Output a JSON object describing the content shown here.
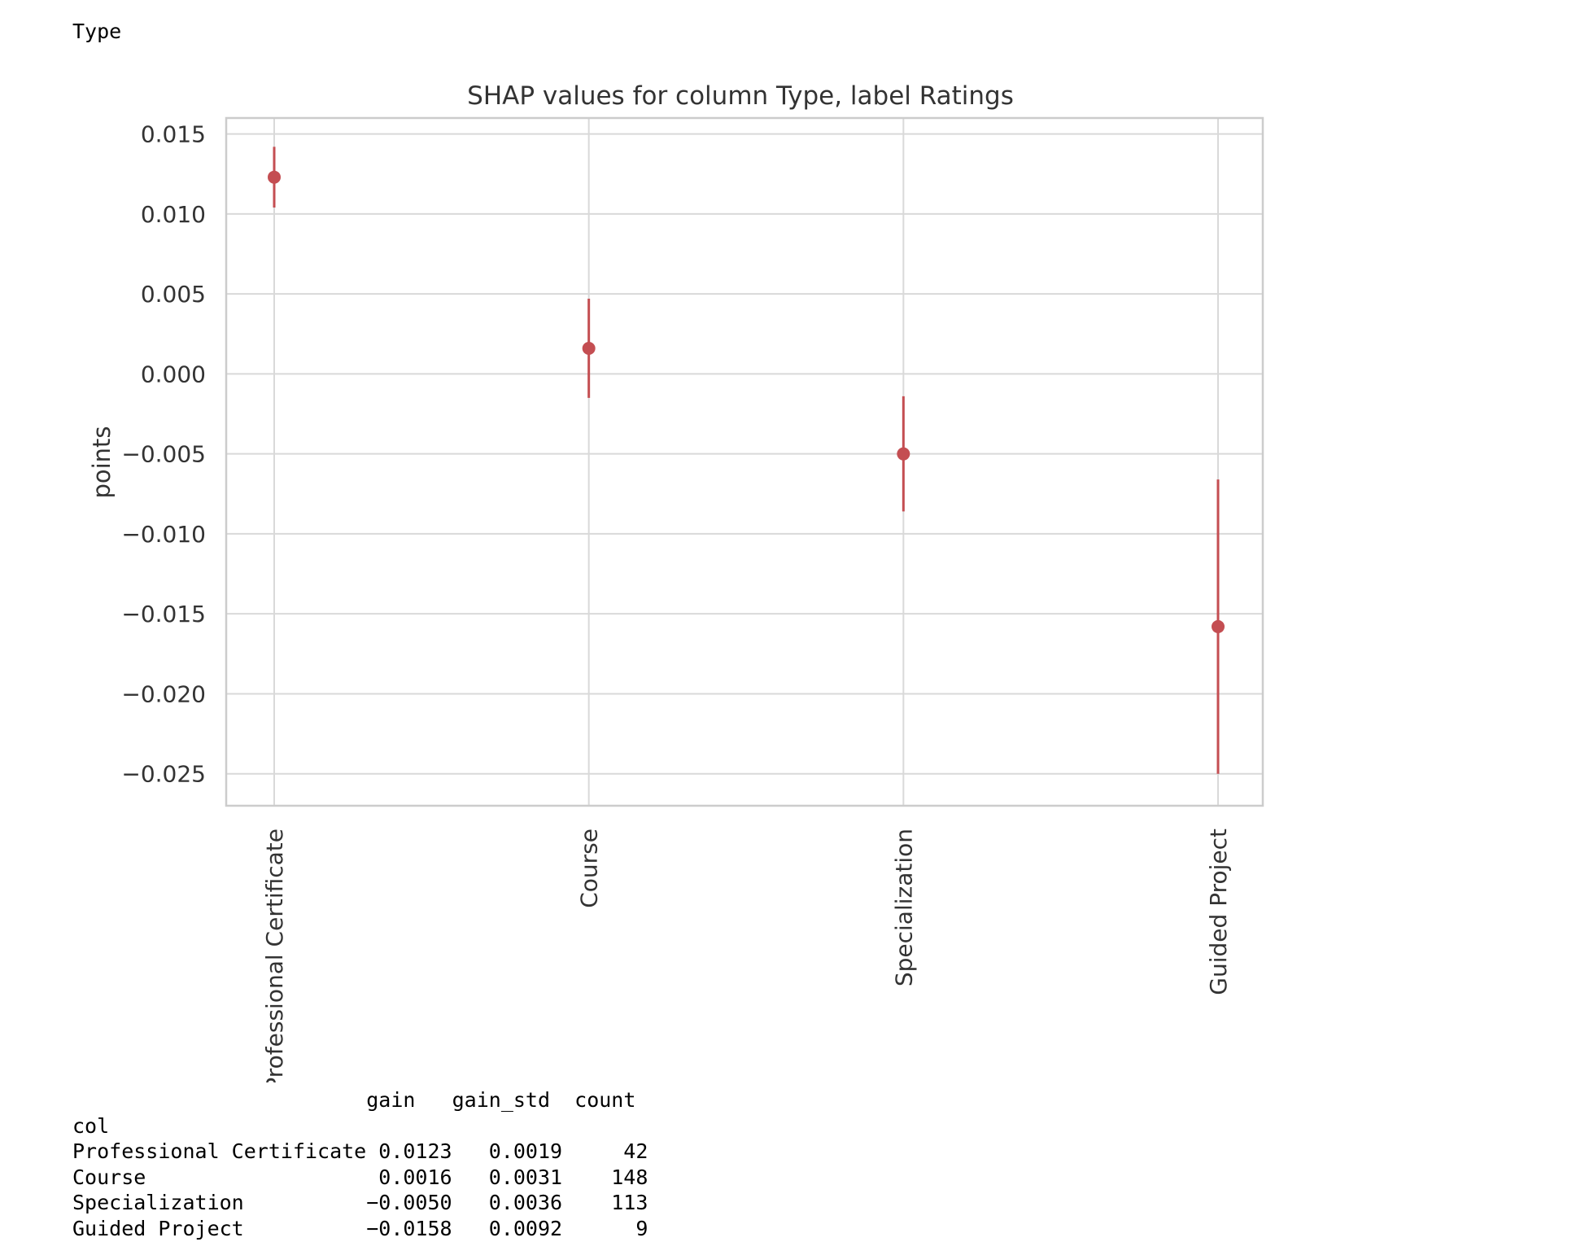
{
  "output": {
    "heading": "Type"
  },
  "chart_data": {
    "type": "scatter",
    "title": "SHAP values for column Type, label Ratings",
    "xlabel": "",
    "ylabel": "points",
    "categories": [
      "Professional Certificate",
      "Course",
      "Specialization",
      "Guided Project"
    ],
    "values": [
      0.0123,
      0.0016,
      -0.005,
      -0.0158
    ],
    "error_low": [
      0.0104,
      -0.0015,
      -0.0086,
      -0.025
    ],
    "error_high": [
      0.0142,
      0.0047,
      -0.0014,
      -0.0066
    ],
    "ylim": [
      -0.027,
      0.016
    ],
    "yticks": [
      0.015,
      0.01,
      0.005,
      0.0,
      -0.005,
      -0.01,
      -0.015,
      -0.02,
      -0.025
    ],
    "ytick_labels": [
      "0.015",
      "0.010",
      "0.005",
      "0.000",
      "−0.005",
      "−0.010",
      "−0.015",
      "−0.020",
      "−0.025"
    ],
    "grid": true,
    "marker_color": "#c44e52"
  },
  "table": {
    "columns": [
      "gain",
      "gain_std",
      "count"
    ],
    "index_name": "col",
    "rows": [
      {
        "col": "Professional Certificate",
        "gain": "0.0123",
        "gain_std": "0.0019",
        "count": "42"
      },
      {
        "col": "Course",
        "gain": "0.0016",
        "gain_std": "0.0031",
        "count": "148"
      },
      {
        "col": "Specialization",
        "gain": "−0.0050",
        "gain_std": "0.0036",
        "count": "113"
      },
      {
        "col": "Guided Project",
        "gain": "−0.0158",
        "gain_std": "0.0092",
        "count": "9"
      }
    ]
  }
}
